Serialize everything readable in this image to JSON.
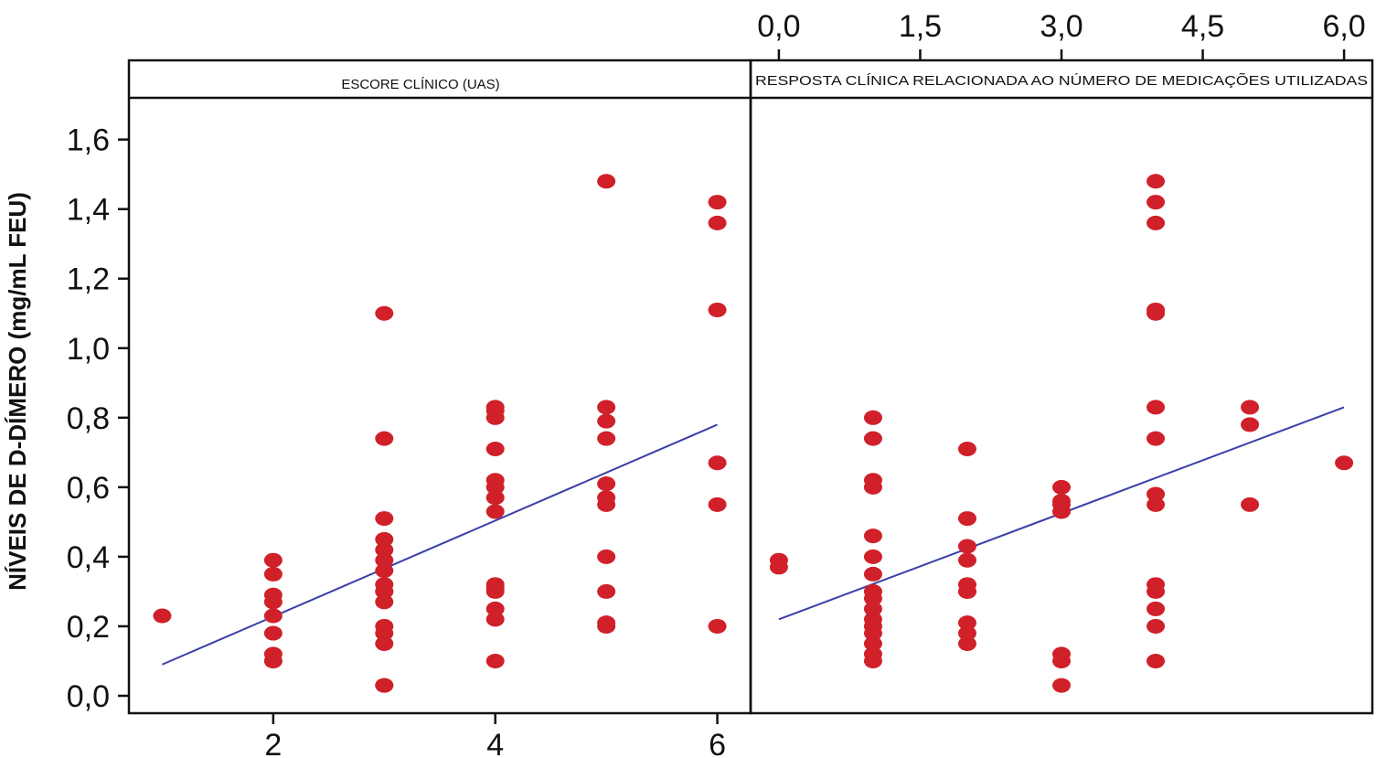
{
  "chart_data": {
    "type": "scatter",
    "ylabel": "NÍVEIS DE D-DÍMERO (mg/mL FEU)",
    "y_ticks": [
      "0,0",
      "0,2",
      "0,4",
      "0,6",
      "0,8",
      "1,0",
      "1,2",
      "1,4",
      "1,6"
    ],
    "ylim": [
      -0.05,
      1.72
    ],
    "marker_color": "#d0202a",
    "line_color": "#3b3fa8",
    "panels": [
      {
        "title": "ESCORE CLÍNICO (UAS)",
        "x_axis_position": "bottom",
        "x_ticks": [
          "2",
          "4",
          "6"
        ],
        "x_tick_values": [
          2,
          4,
          6
        ],
        "xlim": [
          0.7,
          6.3
        ],
        "x": [
          1,
          2,
          2,
          2,
          2,
          2,
          2,
          2,
          2,
          2,
          3,
          3,
          3,
          3,
          3,
          3,
          3,
          3,
          3,
          3,
          3,
          3,
          3,
          3,
          3,
          3,
          4,
          4,
          4,
          4,
          4,
          4,
          4,
          4,
          4,
          4,
          4,
          4,
          4,
          4,
          5,
          5,
          5,
          5,
          5,
          5,
          5,
          5,
          5,
          5,
          5,
          6,
          6,
          6,
          6,
          6,
          6
        ],
        "y": [
          0.23,
          0.39,
          0.35,
          0.29,
          0.27,
          0.23,
          0.18,
          0.12,
          0.1,
          0.1,
          1.1,
          0.74,
          0.51,
          0.45,
          0.42,
          0.39,
          0.36,
          0.32,
          0.3,
          0.27,
          0.2,
          0.18,
          0.15,
          0.03,
          0.03,
          0.3,
          0.83,
          0.8,
          0.71,
          0.62,
          0.6,
          0.57,
          0.53,
          0.32,
          0.3,
          0.25,
          0.22,
          0.1,
          0.82,
          0.31,
          1.48,
          0.83,
          0.79,
          0.74,
          0.61,
          0.57,
          0.55,
          0.4,
          0.3,
          0.21,
          0.2,
          1.42,
          1.36,
          1.11,
          0.67,
          0.55,
          0.2
        ],
        "trend": {
          "x": [
            1,
            6
          ],
          "y": [
            0.09,
            0.78
          ]
        }
      },
      {
        "title": "RESPOSTA CLÍNICA RELACIONADA AO NÚMERO DE MEDICAÇÕES UTILIZADAS",
        "x_axis_position": "top",
        "x_ticks": [
          "0,0",
          "1,5",
          "3,0",
          "4,5",
          "6,0"
        ],
        "x_tick_values": [
          0,
          1.5,
          3.0,
          4.5,
          6.0
        ],
        "xlim": [
          -0.3,
          6.3
        ],
        "x": [
          0,
          0,
          1,
          1,
          1,
          1,
          1,
          1,
          1,
          1,
          1,
          1,
          1,
          1,
          1,
          1,
          1,
          1,
          2,
          2,
          2,
          2,
          2,
          2,
          2,
          2,
          2,
          2,
          3,
          3,
          3,
          3,
          3,
          3,
          3,
          4,
          4,
          4,
          4,
          4,
          4,
          4,
          4,
          4,
          4,
          4,
          4,
          4,
          4,
          5,
          5,
          5,
          6
        ],
        "y": [
          0.39,
          0.37,
          0.8,
          0.74,
          0.62,
          0.6,
          0.46,
          0.4,
          0.35,
          0.3,
          0.28,
          0.25,
          0.22,
          0.2,
          0.18,
          0.15,
          0.12,
          0.1,
          0.71,
          0.51,
          0.43,
          0.39,
          0.32,
          0.3,
          0.21,
          0.18,
          0.15,
          0.3,
          0.6,
          0.56,
          0.53,
          0.12,
          0.1,
          0.03,
          0.55,
          1.48,
          1.42,
          1.36,
          1.11,
          1.1,
          0.83,
          0.74,
          0.58,
          0.55,
          0.32,
          0.3,
          0.25,
          0.2,
          0.1,
          0.83,
          0.78,
          0.55,
          0.67
        ],
        "trend": {
          "x": [
            0,
            6
          ],
          "y": [
            0.22,
            0.83
          ]
        }
      }
    ]
  }
}
